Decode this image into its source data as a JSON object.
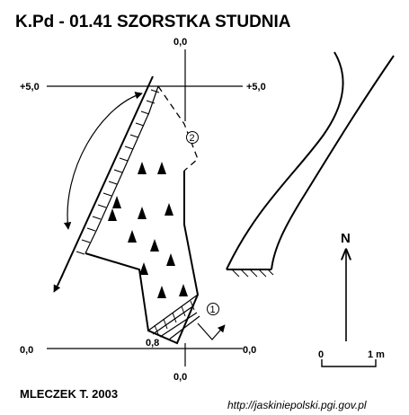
{
  "title": "K.Pd - 01.41 SZORSTKA STUDNIA",
  "section_labels": {
    "upper_left": "+5,0",
    "upper_right": "+5,0",
    "upper_top": "0,0",
    "lower_left": "0,0",
    "lower_right": "0,0",
    "lower_bottom": "0,0",
    "depth_mark": "0,8"
  },
  "markers": [
    "1",
    "2"
  ],
  "north_label": "N",
  "scale": {
    "start": "0",
    "end": "1 m"
  },
  "author": "MLECZEK T. 2003",
  "url": "http://jaskiniepolski.pgi.gov.pl"
}
